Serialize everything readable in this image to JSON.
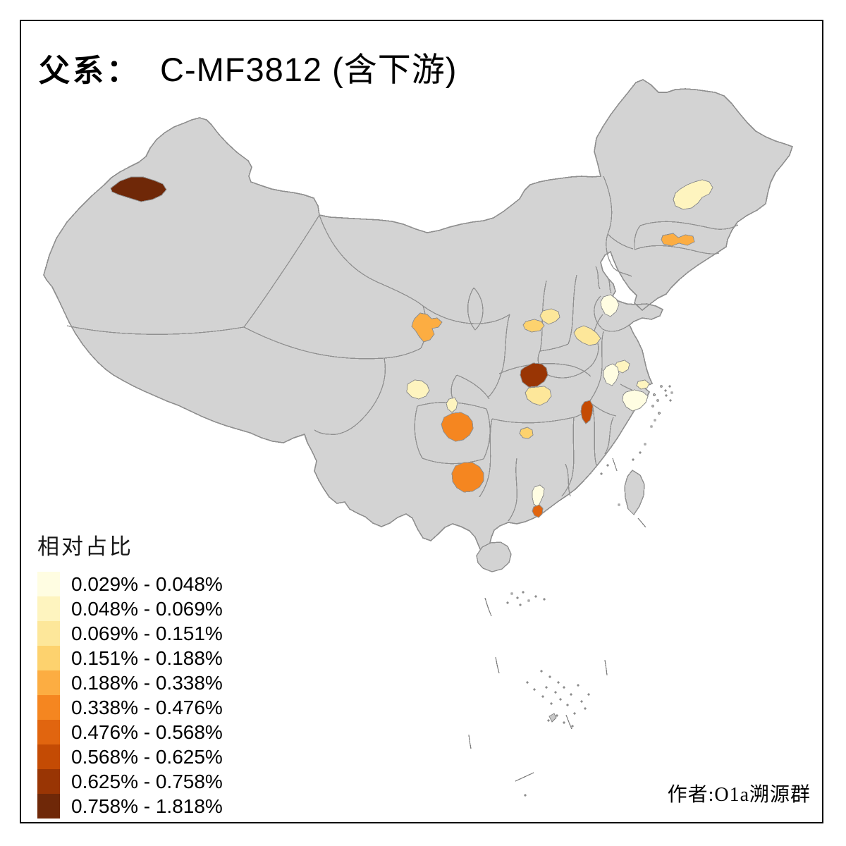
{
  "title": {
    "prefix": "父系：",
    "main": "C-MF3812 (含下游)"
  },
  "legend": {
    "title": "相对占比",
    "items": [
      {
        "range": "0.029% - 0.048%",
        "color": "#FFFDE2"
      },
      {
        "range": "0.048% - 0.069%",
        "color": "#FEF4BF"
      },
      {
        "range": "0.069% - 0.151%",
        "color": "#FDE79A"
      },
      {
        "range": "0.151% - 0.188%",
        "color": "#FDD26E"
      },
      {
        "range": "0.188% - 0.338%",
        "color": "#FCAD42"
      },
      {
        "range": "0.338% - 0.476%",
        "color": "#F58620"
      },
      {
        "range": "0.476% - 0.568%",
        "color": "#E1650F"
      },
      {
        "range": "0.568% - 0.625%",
        "color": "#C44B04"
      },
      {
        "range": "0.625% - 0.758%",
        "color": "#993504"
      },
      {
        "range": "0.758% - 1.818%",
        "color": "#6F2808"
      }
    ]
  },
  "attribution": "作者:O1a溯源群",
  "map": {
    "land_fill": "#D3D3D3",
    "border_color": "#8F8F8F",
    "background": "#FFFFFF",
    "regions": [
      {
        "name": "nw-xinjiang-ili",
        "bin": 9,
        "range": "0.758% - 1.818%"
      },
      {
        "name": "heilongjiang-harbin",
        "bin": 1,
        "range": "0.048% - 0.069%"
      },
      {
        "name": "liaoning-shenyang",
        "bin": 4,
        "range": "0.188% - 0.338%"
      },
      {
        "name": "gansu-lanzhou",
        "bin": 4,
        "range": "0.188% - 0.338%"
      },
      {
        "name": "shaanxi-north",
        "bin": 2,
        "range": "0.069% - 0.151%"
      },
      {
        "name": "shaanxi-west",
        "bin": 3,
        "range": "0.151% - 0.188%"
      },
      {
        "name": "henan-central",
        "bin": 2,
        "range": "0.069% - 0.151%"
      },
      {
        "name": "shandong-jinan",
        "bin": 0,
        "range": "0.029% - 0.048%"
      },
      {
        "name": "anhui-chuzhou",
        "bin": 1,
        "range": "0.048% - 0.069%"
      },
      {
        "name": "jiangsu-nanjing",
        "bin": 0,
        "range": "0.029% - 0.048%"
      },
      {
        "name": "shanghai-suzhou",
        "bin": 1,
        "range": "0.048% - 0.069%"
      },
      {
        "name": "zhejiang-hangzhou",
        "bin": 0,
        "range": "0.029% - 0.048%"
      },
      {
        "name": "hubei-xiangyang",
        "bin": 8,
        "range": "0.625% - 0.758%"
      },
      {
        "name": "hubei-jingzhou",
        "bin": 2,
        "range": "0.069% - 0.151%"
      },
      {
        "name": "anhui-anqing",
        "bin": 7,
        "range": "0.568% - 0.625%"
      },
      {
        "name": "sichuan-chengdu",
        "bin": 1,
        "range": "0.048% - 0.069%"
      },
      {
        "name": "chongqing-small",
        "bin": 1,
        "range": "0.048% - 0.069%"
      },
      {
        "name": "guizhou-guiyang",
        "bin": 5,
        "range": "0.338% - 0.476%"
      },
      {
        "name": "hunan-small",
        "bin": 3,
        "range": "0.151% - 0.188%"
      },
      {
        "name": "guangxi-hechi",
        "bin": 5,
        "range": "0.338% - 0.476%"
      },
      {
        "name": "guangdong-qingyuan",
        "bin": 0,
        "range": "0.029% - 0.048%"
      },
      {
        "name": "guangdong-jiangmen",
        "bin": 6,
        "range": "0.476% - 0.568%"
      }
    ]
  }
}
